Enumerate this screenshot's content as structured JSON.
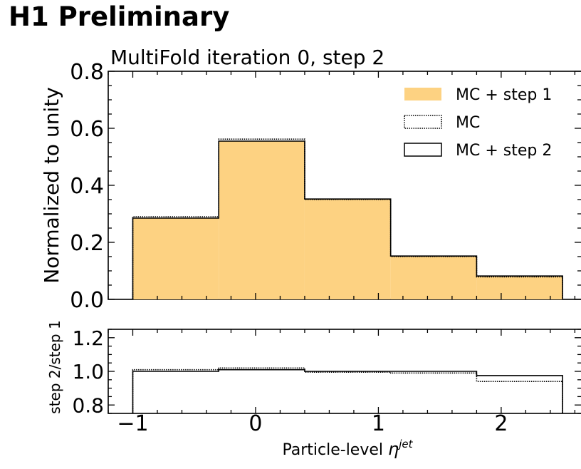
{
  "header": {
    "preliminary_label": "H1 Preliminary"
  },
  "chart_data": {
    "type": "step-histogram",
    "title": "MultiFold iteration 0, step 2",
    "xlabel": "Particle-level η^jet",
    "xlabel_main": "Particle-level ",
    "xlabel_symbol": "η",
    "xlabel_sup": "jet",
    "bin_edges": [
      -1.0,
      -0.3,
      0.4,
      1.1,
      1.8,
      2.5
    ],
    "xlim": [
      -1.2,
      2.65
    ],
    "xticks": [
      -1,
      0,
      1,
      2
    ],
    "xtick_labels": [
      "−1",
      "0",
      "1",
      "2"
    ],
    "main_panel": {
      "ylabel": "Normalized to unity",
      "ylim": [
        0.0,
        0.8
      ],
      "yticks": [
        0.0,
        0.2,
        0.4,
        0.6,
        0.8
      ],
      "ytick_labels": [
        "0.0",
        "0.2",
        "0.4",
        "0.6",
        "0.8"
      ],
      "legend_position": "top-right",
      "series": [
        {
          "name": "MC + step 1",
          "style": "filled",
          "color": "#fdd282",
          "values": [
            0.285,
            0.555,
            0.352,
            0.152,
            0.082
          ]
        },
        {
          "name": "MC",
          "style": "dotted",
          "color": "#000000",
          "values": [
            0.29,
            0.562,
            0.35,
            0.15,
            0.079
          ]
        },
        {
          "name": "MC + step 2",
          "style": "solid",
          "color": "#000000",
          "values": [
            0.285,
            0.555,
            0.352,
            0.152,
            0.082
          ]
        }
      ]
    },
    "ratio_panel": {
      "ylabel": "step 2/step 1",
      "ylim": [
        0.75,
        1.25
      ],
      "yticks": [
        0.8,
        1.0,
        1.2
      ],
      "ytick_labels": [
        "0.8",
        "1.0",
        "1.2"
      ],
      "series": [
        {
          "name": "MC",
          "style": "dotted",
          "color": "#000000",
          "values": [
            1.01,
            1.02,
            0.995,
            0.99,
            0.94
          ]
        },
        {
          "name": "MC + step 2",
          "style": "solid",
          "color": "#000000",
          "values": [
            1.0,
            1.01,
            1.0,
            1.0,
            0.975
          ]
        }
      ]
    }
  }
}
